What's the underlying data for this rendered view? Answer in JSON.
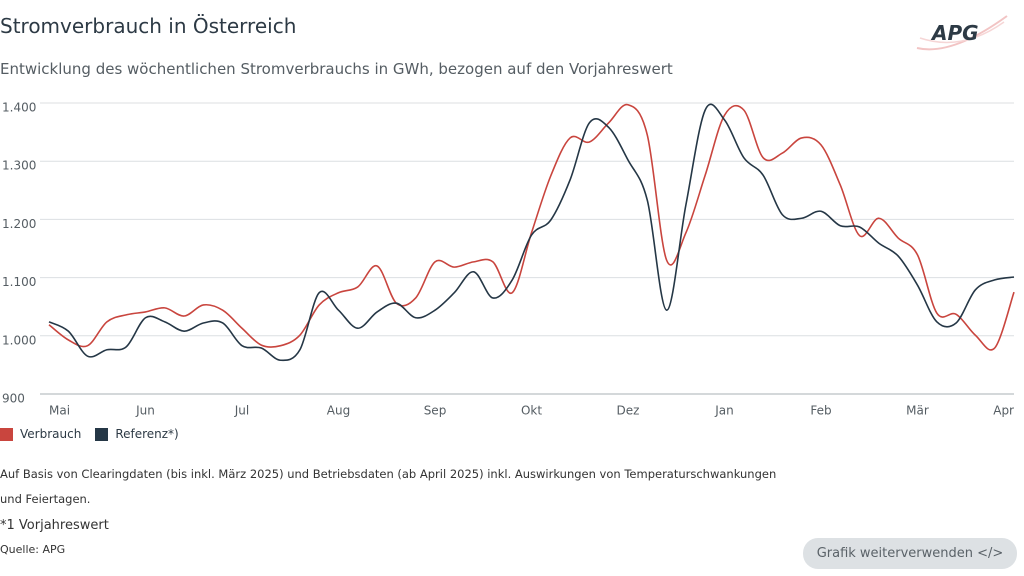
{
  "chart_data": {
    "type": "line",
    "title": "Stromverbrauch in Österreich",
    "subtitle": "Entwicklung des wöchentlichen Stromverbrauchs in GWh, bezogen auf den Vorjahreswert",
    "categories": [
      "Mai",
      null,
      null,
      null,
      null,
      "Jun",
      null,
      null,
      null,
      null,
      "Jul",
      null,
      null,
      null,
      null,
      "Aug",
      null,
      null,
      null,
      null,
      "Sep",
      null,
      null,
      null,
      null,
      "Okt",
      null,
      null,
      null,
      null,
      "Dez",
      null,
      null,
      null,
      null,
      "Jan",
      null,
      null,
      null,
      null,
      "Feb",
      null,
      null,
      null,
      null,
      "Mär",
      null,
      null,
      null,
      null,
      "Apr"
    ],
    "series": [
      {
        "name": "Verbrauch",
        "color": "#c9453e",
        "values": [
          1019,
          993,
          983,
          1024,
          1036,
          1041,
          1048,
          1034,
          1053,
          1044,
          1013,
          984,
          983,
          1001,
          1053,
          1074,
          1084,
          1120,
          1056,
          1065,
          1127,
          1118,
          1127,
          1127,
          1074,
          1177,
          1275,
          1340,
          1333,
          1366,
          1397,
          1345,
          1130,
          1177,
          1276,
          1379,
          1388,
          1306,
          1314,
          1340,
          1328,
          1259,
          1172,
          1202,
          1168,
          1139,
          1039,
          1037,
          1001,
          979,
          1075
        ]
      },
      {
        "name": "Referenz*)",
        "color": "#253746",
        "values": [
          1024,
          1008,
          965,
          976,
          981,
          1031,
          1024,
          1008,
          1022,
          1022,
          983,
          979,
          958,
          976,
          1074,
          1044,
          1013,
          1041,
          1056,
          1031,
          1044,
          1074,
          1110,
          1065,
          1096,
          1173,
          1199,
          1268,
          1366,
          1358,
          1302,
          1233,
          1044,
          1225,
          1388,
          1371,
          1306,
          1276,
          1208,
          1202,
          1214,
          1189,
          1187,
          1159,
          1137,
          1087,
          1024,
          1022,
          1079,
          1096,
          1101
        ]
      }
    ],
    "ylim": [
      900,
      1400
    ],
    "yticks": [
      900,
      {
        "value": 1000,
        "label": "1.000"
      },
      {
        "value": 1100,
        "label": "1.100"
      },
      {
        "value": 1200,
        "label": "1.200"
      },
      {
        "value": 1300,
        "label": "1.300"
      },
      {
        "value": 1400,
        "label": "1.400"
      }
    ],
    "grid": true
  },
  "logo": "APG",
  "footer": {
    "note": "Auf Basis von Clearingdaten (bis inkl. März 2025) und Betriebsdaten (ab April 2025) inkl. Auswirkungen von Temperaturschwankungen und Feiertagen.",
    "reference": "*1 Vorjahreswert",
    "source": "Quelle: APG",
    "button": "Grafik weiterverwenden </>"
  }
}
